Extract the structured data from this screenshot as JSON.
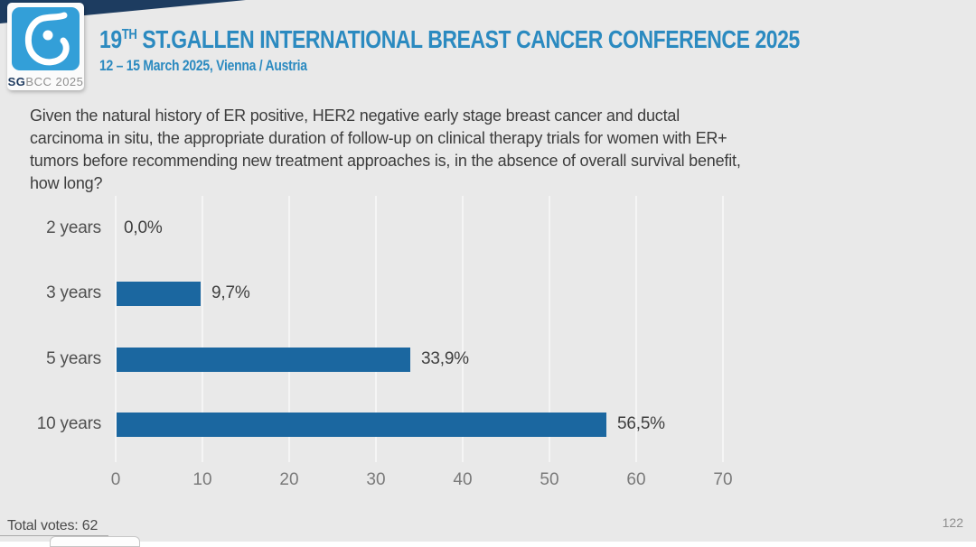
{
  "colors": {
    "slide_background": "#e9e9e9",
    "header_wedge": "#1d3c60",
    "logo_blue": "#339fd8",
    "title_blue": "#2b8ac0",
    "bar_blue": "#1b67a0",
    "gridline": "#f5f5f5",
    "text_dark": "#3d3d3d",
    "tick_gray": "#7a7a7a"
  },
  "header": {
    "logo_caption_bold": "SG",
    "logo_caption_rest": "BCC 2025",
    "title_num": "19",
    "title_sup": "TH",
    "title_rest": " ST.GALLEN INTERNATIONAL BREAST CANCER CONFERENCE 2025",
    "subtitle": "12 – 15 March 2025, Vienna / Austria"
  },
  "question_lines": [
    "Given the natural history of ER positive, HER2 negative early stage breast cancer and ductal",
    "carcinoma in situ, the appropriate duration of follow-up on clinical therapy trials for women with ER+",
    "tumors before recommending new treatment approaches is, in the absence of overall survival benefit,",
    "how long?"
  ],
  "chart_data": {
    "type": "bar",
    "orientation": "horizontal",
    "title": "",
    "categories": [
      "2 years",
      "3 years",
      "5 years",
      "10 years"
    ],
    "values": [
      0.0,
      9.7,
      33.9,
      56.5
    ],
    "value_labels": [
      "0,0%",
      "9,7%",
      "33,9%",
      "56,5%"
    ],
    "x_ticks": [
      "0",
      "10",
      "20",
      "30",
      "40",
      "50",
      "60",
      "70"
    ],
    "xlim": [
      0,
      75
    ],
    "xlabel": "",
    "ylabel": "",
    "grid": true,
    "legend": "none",
    "bar_color": "#1b67a0"
  },
  "footer": {
    "total_votes": "Total votes: 62",
    "page_number": "122"
  }
}
